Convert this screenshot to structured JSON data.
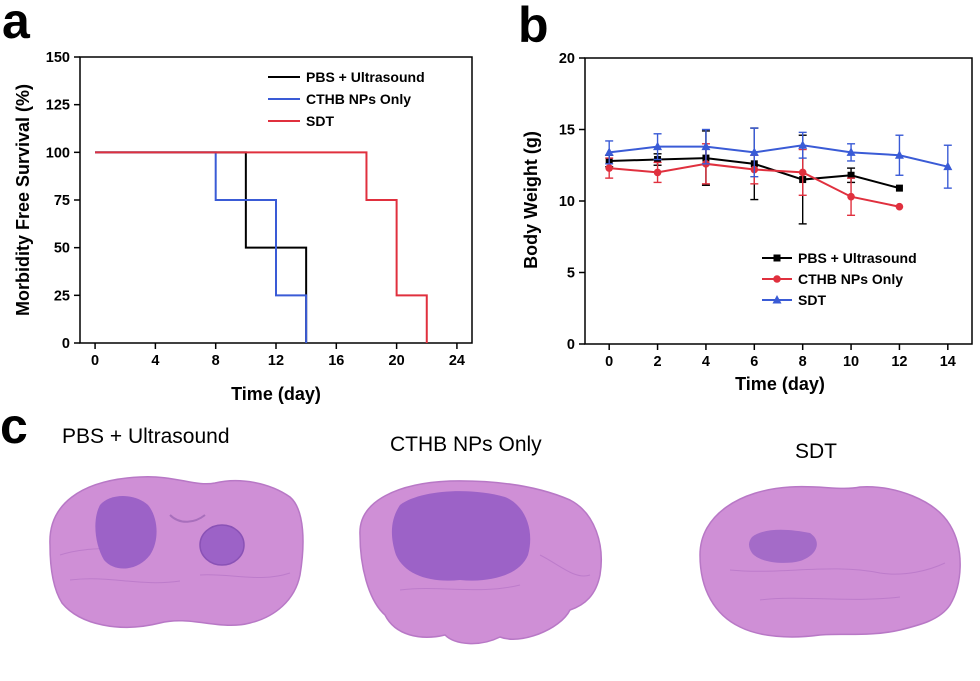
{
  "panels": {
    "a": "a",
    "b": "b",
    "c": "c"
  },
  "colors": {
    "pbs": "#000000",
    "cthb": "#3a5bd6",
    "sdt": "#e0303e",
    "tissue": "#cf8fd6",
    "tumor": "#9c62c7"
  },
  "chart_data": [
    {
      "type": "line",
      "step": true,
      "xlabel": "Time (day)",
      "ylabel": "Morbidity Free Survival (%)",
      "xlim": [
        -1,
        25
      ],
      "ylim": [
        0,
        150
      ],
      "xticks": [
        "0",
        "4",
        "8",
        "12",
        "16",
        "20",
        "24"
      ],
      "yticks": [
        "0",
        "25",
        "50",
        "75",
        "100",
        "125",
        "150"
      ],
      "legend_position": "top-right",
      "series": [
        {
          "name": "PBS + Ultrasound",
          "color": "#000000",
          "x": [
            0,
            10,
            10,
            14,
            14
          ],
          "y": [
            100,
            100,
            50,
            50,
            0
          ]
        },
        {
          "name": "CTHB NPs Only",
          "color": "#3a5bd6",
          "x": [
            0,
            8,
            8,
            12,
            12,
            14,
            14
          ],
          "y": [
            100,
            100,
            75,
            75,
            25,
            25,
            0
          ]
        },
        {
          "name": "SDT",
          "color": "#e0303e",
          "x": [
            0,
            18,
            18,
            20,
            20,
            22,
            22
          ],
          "y": [
            100,
            100,
            75,
            75,
            25,
            25,
            0
          ]
        }
      ]
    },
    {
      "type": "line",
      "xlabel": "Time (day)",
      "ylabel": "Body Weight (g)",
      "xlim": [
        -1,
        15
      ],
      "ylim": [
        0,
        20
      ],
      "xticks": [
        "0",
        "2",
        "4",
        "6",
        "8",
        "10",
        "12",
        "14"
      ],
      "yticks": [
        "0",
        "5",
        "10",
        "15",
        "20"
      ],
      "legend_position": "bottom-right",
      "series": [
        {
          "name": "PBS + Ultrasound",
          "color": "#000000",
          "marker": "square",
          "x": [
            0,
            2,
            4,
            6,
            8,
            10,
            12
          ],
          "y": [
            12.8,
            12.9,
            13.0,
            12.6,
            11.5,
            11.8,
            10.9
          ],
          "error": [
            0.4,
            0.4,
            1.9,
            2.5,
            3.1,
            0.5,
            0
          ]
        },
        {
          "name": "CTHB NPs Only",
          "color": "#e0303e",
          "marker": "circle",
          "x": [
            0,
            2,
            4,
            6,
            8,
            10,
            12
          ],
          "y": [
            12.3,
            12.0,
            12.6,
            12.2,
            12.0,
            10.3,
            9.6
          ],
          "error": [
            0.7,
            0.7,
            1.4,
            1.0,
            1.6,
            1.3,
            0
          ]
        },
        {
          "name": "SDT",
          "color": "#3a5bd6",
          "marker": "triangle",
          "x": [
            0,
            2,
            4,
            6,
            8,
            10,
            12,
            14
          ],
          "y": [
            13.4,
            13.8,
            13.8,
            13.4,
            13.9,
            13.4,
            13.2,
            12.4
          ],
          "error": [
            0.8,
            0.9,
            1.2,
            1.7,
            0.9,
            0.6,
            1.4,
            1.5
          ]
        }
      ]
    }
  ],
  "histology": [
    {
      "title": "PBS + Ultrasound"
    },
    {
      "title": "CTHB NPs Only"
    },
    {
      "title": "SDT"
    }
  ]
}
